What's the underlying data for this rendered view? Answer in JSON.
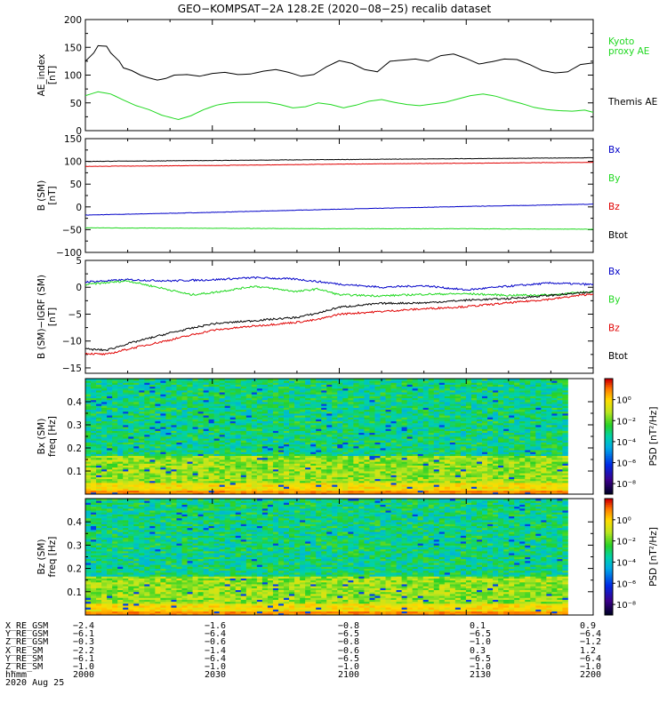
{
  "title": "GEO−KOMPSAT−2A 128.2E (2020−08−25) recalib dataset",
  "x_range": [
    0,
    120
  ],
  "chart_data": [
    {
      "type": "line",
      "panel": "ae",
      "ylabel": [
        "AE_index",
        "[nT]"
      ],
      "ylim": [
        0,
        200
      ],
      "yticks": [
        0,
        50,
        100,
        150,
        200
      ],
      "series": [
        {
          "name": "Kyoto proxy AE",
          "color": "#1fd81f",
          "x": [
            0,
            3,
            6,
            9,
            12,
            15,
            18,
            22,
            25,
            28,
            31,
            34,
            37,
            40,
            43,
            46,
            49,
            52,
            55,
            58,
            61,
            64,
            67,
            70,
            73,
            76,
            79,
            82,
            85,
            88,
            91,
            94,
            97,
            100,
            103,
            106,
            109,
            112,
            115,
            118,
            120
          ],
          "y": [
            63,
            70,
            66,
            55,
            45,
            38,
            28,
            20,
            27,
            38,
            46,
            50,
            51,
            51,
            51,
            47,
            41,
            43,
            50,
            47,
            41,
            46,
            53,
            56,
            51,
            47,
            45,
            48,
            51,
            57,
            63,
            66,
            62,
            55,
            49,
            42,
            38,
            36,
            35,
            37,
            33
          ]
        },
        {
          "name": "Themis AE",
          "color": "#000000",
          "x": [
            0,
            2,
            3,
            5,
            6,
            8,
            9,
            11,
            13,
            15,
            17,
            19,
            21,
            24,
            27,
            30,
            33,
            36,
            39,
            42,
            45,
            48,
            51,
            54,
            57,
            60,
            63,
            66,
            69,
            72,
            75,
            78,
            81,
            84,
            87,
            90,
            93,
            96,
            99,
            102,
            105,
            108,
            111,
            114,
            117,
            120
          ],
          "y": [
            125,
            140,
            153,
            152,
            140,
            125,
            113,
            108,
            100,
            95,
            91,
            94,
            100,
            101,
            98,
            103,
            105,
            101,
            102,
            107,
            110,
            105,
            98,
            101,
            115,
            126,
            121,
            110,
            106,
            125,
            127,
            129,
            125,
            135,
            138,
            130,
            120,
            124,
            129,
            128,
            119,
            108,
            104,
            106,
            119,
            122
          ]
        }
      ],
      "legend": [
        {
          "text": "Kyoto",
          "color": "#1fd81f"
        },
        {
          "text": "proxy AE",
          "color": "#1fd81f"
        },
        {
          "text": "Themis AE",
          "color": "#000000"
        }
      ]
    },
    {
      "type": "line",
      "panel": "b",
      "ylabel": [
        "B (SM)",
        "[nT]"
      ],
      "ylim": [
        -100,
        150
      ],
      "yticks": [
        -100,
        -50,
        0,
        50,
        100,
        150
      ],
      "series": [
        {
          "name": "Bx",
          "color": "#0000c8",
          "x": [
            0,
            30,
            60,
            90,
            120
          ],
          "y": [
            -18,
            -12,
            -5,
            1,
            6
          ]
        },
        {
          "name": "By",
          "color": "#1fd81f",
          "x": [
            0,
            30,
            60,
            90,
            120
          ],
          "y": [
            -46,
            -47,
            -48,
            -48,
            -49
          ]
        },
        {
          "name": "Bz",
          "color": "#e00000",
          "x": [
            0,
            30,
            60,
            90,
            120
          ],
          "y": [
            89,
            91,
            94,
            96,
            98
          ]
        },
        {
          "name": "Btot",
          "color": "#000000",
          "x": [
            0,
            30,
            60,
            90,
            120
          ],
          "y": [
            100,
            102,
            104,
            106,
            108
          ]
        }
      ],
      "legend": [
        {
          "text": "Bx",
          "color": "#0000c8"
        },
        {
          "text": "By",
          "color": "#1fd81f"
        },
        {
          "text": "Bz",
          "color": "#e00000"
        },
        {
          "text": "Btot",
          "color": "#000000"
        }
      ]
    },
    {
      "type": "line",
      "panel": "dB",
      "ylabel": [
        "B (SM)−IGRF (SM)",
        "[nT]"
      ],
      "ylim": [
        -16,
        5
      ],
      "yticks": [
        -15,
        -10,
        -5,
        0,
        5
      ],
      "series": [
        {
          "name": "Bx",
          "color": "#0000c8",
          "x": [
            0,
            10,
            20,
            30,
            40,
            50,
            60,
            70,
            80,
            90,
            100,
            110,
            120
          ],
          "y": [
            1.0,
            1.4,
            1.2,
            1.4,
            1.8,
            1.5,
            0.6,
            0.0,
            0.3,
            -0.5,
            0.2,
            0.8,
            0.5
          ]
        },
        {
          "name": "By",
          "color": "#1fd81f",
          "x": [
            0,
            10,
            20,
            25,
            30,
            40,
            50,
            55,
            60,
            70,
            80,
            90,
            100,
            110,
            120
          ],
          "y": [
            0.5,
            1.2,
            -0.5,
            -1.4,
            -1.0,
            0.2,
            -0.8,
            -0.3,
            -1.4,
            -1.6,
            -1.3,
            -1.2,
            -1.5,
            -1.4,
            -0.8
          ]
        },
        {
          "name": "Bz",
          "color": "#e00000",
          "x": [
            0,
            5,
            10,
            20,
            30,
            40,
            50,
            55,
            60,
            70,
            80,
            90,
            100,
            110,
            120
          ],
          "y": [
            -12.3,
            -12.5,
            -11.5,
            -9.8,
            -8.0,
            -7.2,
            -6.5,
            -6.0,
            -5.0,
            -4.5,
            -4.0,
            -3.6,
            -2.9,
            -2.2,
            -1.2
          ]
        },
        {
          "name": "Btot",
          "color": "#000000",
          "x": [
            0,
            5,
            10,
            20,
            30,
            40,
            50,
            55,
            60,
            70,
            80,
            90,
            100,
            110,
            120
          ],
          "y": [
            -11.5,
            -11.7,
            -10.5,
            -8.5,
            -6.8,
            -6.2,
            -5.6,
            -4.8,
            -3.7,
            -3.0,
            -2.9,
            -2.4,
            -2.1,
            -1.5,
            -0.9
          ]
        }
      ],
      "legend": [
        {
          "text": "Bx",
          "color": "#0000c8"
        },
        {
          "text": "By",
          "color": "#1fd81f"
        },
        {
          "text": "Bz",
          "color": "#e00000"
        },
        {
          "text": "Btot",
          "color": "#000000"
        }
      ]
    },
    {
      "type": "heatmap",
      "panel": "specBx",
      "ylabel": [
        "Bx (SM)",
        "freq [Hz]"
      ],
      "ylim": [
        0,
        0.5
      ],
      "yticks": [
        0.1,
        0.2,
        0.3,
        0.4
      ],
      "colorbar": {
        "label": "PSD [nT²/Hz]",
        "ticks": [
          "10⁰",
          "10⁻²",
          "10⁻⁴",
          "10⁻⁶",
          "10⁻⁸"
        ],
        "range_exp": [
          -9,
          2
        ]
      },
      "data_until": 114
    },
    {
      "type": "heatmap",
      "panel": "specBz",
      "ylabel": [
        "Bz (SM)",
        "freq [Hz]"
      ],
      "ylim": [
        0,
        0.5
      ],
      "yticks": [
        0.1,
        0.2,
        0.3,
        0.4
      ],
      "colorbar": {
        "label": "PSD [nT²/Hz]",
        "ticks": [
          "10⁰",
          "10⁻²",
          "10⁻⁴",
          "10⁻⁶",
          "10⁻⁸"
        ],
        "range_exp": [
          -9,
          2
        ]
      },
      "data_until": 114
    }
  ],
  "ephemeris": {
    "rows": [
      {
        "label": "X_RE_GSM",
        "values": [
          "−2.4",
          "−1.6",
          "−0.8",
          "0.1",
          "0.9"
        ]
      },
      {
        "label": "Y_RE_GSM",
        "values": [
          "−6.1",
          "−6.4",
          "−6.5",
          "−6.5",
          "−6.4"
        ]
      },
      {
        "label": "Z_RE_GSM",
        "values": [
          "−0.3",
          "−0.6",
          "−0.8",
          "−1.0",
          "−1.2"
        ]
      },
      {
        "label": "X_RE_SM",
        "values": [
          "−2.2",
          "−1.4",
          "−0.6",
          "0.3",
          "1.2"
        ]
      },
      {
        "label": "Y_RE_SM",
        "values": [
          "−6.1",
          "−6.4",
          "−6.5",
          "−6.5",
          "−6.4"
        ]
      },
      {
        "label": "Z_RE_SM",
        "values": [
          "−1.0",
          "−1.0",
          "−1.0",
          "−1.0",
          "−1.0"
        ]
      },
      {
        "label": "hhmm",
        "values": [
          "2000",
          "2030",
          "2100",
          "2130",
          "2200"
        ]
      }
    ],
    "date": "2020 Aug 25"
  }
}
